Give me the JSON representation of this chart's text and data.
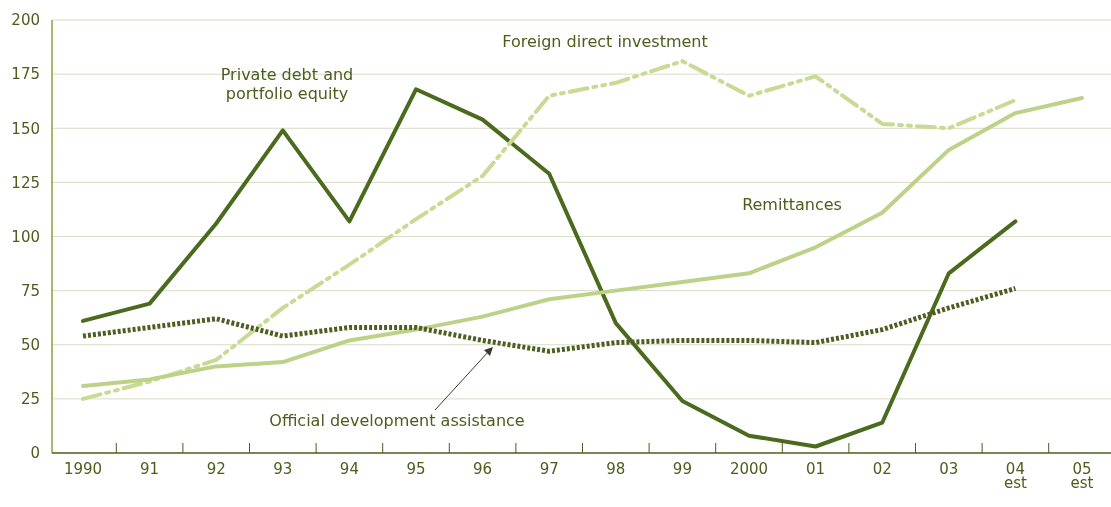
{
  "chart_data": {
    "type": "line",
    "categories": [
      "1990",
      "91",
      "92",
      "93",
      "94",
      "95",
      "96",
      "97",
      "98",
      "99",
      "2000",
      "01",
      "02",
      "03",
      "04\nest",
      "05\nest"
    ],
    "series": [
      {
        "name": "Private debt and portfolio equity",
        "color": "#4a6a1e",
        "line_style": "solid",
        "values": [
          61,
          69,
          106,
          149,
          107,
          168,
          154,
          129,
          60,
          24,
          8,
          3,
          14,
          83,
          107,
          null
        ]
      },
      {
        "name": "Foreign direct investment",
        "color": "#c8da94",
        "line_style": "dashed",
        "values": [
          25,
          33,
          43,
          67,
          87,
          108,
          128,
          165,
          171,
          181,
          165,
          174,
          152,
          150,
          163,
          null
        ]
      },
      {
        "name": "Remittances",
        "color": "#bdd289",
        "line_style": "solid",
        "values": [
          31,
          34,
          40,
          42,
          52,
          57,
          63,
          71,
          75,
          79,
          83,
          95,
          111,
          140,
          157,
          164
        ]
      },
      {
        "name": "Official development assistance",
        "color": "#4d5e20",
        "line_style": "dotted",
        "values": [
          54,
          58,
          62,
          54,
          58,
          58,
          52,
          47,
          51,
          52,
          52,
          51,
          57,
          67,
          76,
          null
        ]
      }
    ],
    "ylim": [
      0,
      200
    ],
    "yticks": [
      0,
      25,
      50,
      75,
      100,
      125,
      150,
      175,
      200
    ],
    "grid": "y",
    "marker": "none"
  }
}
